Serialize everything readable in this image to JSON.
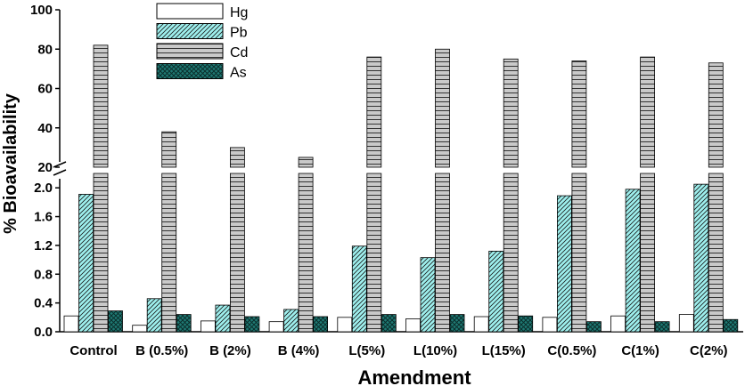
{
  "chart_data": {
    "type": "bar",
    "xlabel": "Amendment",
    "ylabel": "% Bioavailability",
    "categories": [
      "Control",
      "B (0.5%)",
      "B (2%)",
      "B (4%)",
      "L(5%)",
      "L(10%)",
      "L(15%)",
      "C(0.5%)",
      "C(1%)",
      "C(2%)"
    ],
    "series": [
      {
        "name": "Hg",
        "values": [
          0.22,
          0.09,
          0.15,
          0.14,
          0.2,
          0.18,
          0.21,
          0.2,
          0.22,
          0.24
        ]
      },
      {
        "name": "Pb",
        "values": [
          1.91,
          0.46,
          0.37,
          0.31,
          1.19,
          1.03,
          1.12,
          1.89,
          1.98,
          2.05
        ]
      },
      {
        "name": "Cd",
        "values": [
          82,
          38,
          30,
          25,
          76,
          80,
          75,
          74,
          76,
          73
        ]
      },
      {
        "name": "As",
        "values": [
          0.29,
          0.24,
          0.21,
          0.21,
          0.24,
          0.24,
          0.22,
          0.14,
          0.14,
          0.17
        ]
      }
    ],
    "y_axis_broken": true,
    "y_lower": {
      "range": [
        0,
        2.2
      ],
      "ticks": [
        "0.0",
        "0.4",
        "0.8",
        "1.2",
        "1.6",
        "2.0"
      ]
    },
    "y_upper": {
      "range": [
        20,
        100
      ],
      "ticks": [
        "20",
        "40",
        "60",
        "80",
        "100"
      ]
    },
    "legend_position": "top-left",
    "grid": false,
    "colors": {
      "Hg": "#ffffff",
      "Pb": "#9ef0ee",
      "Cd": "#c9c9c9",
      "As": "#1f7a74"
    }
  }
}
